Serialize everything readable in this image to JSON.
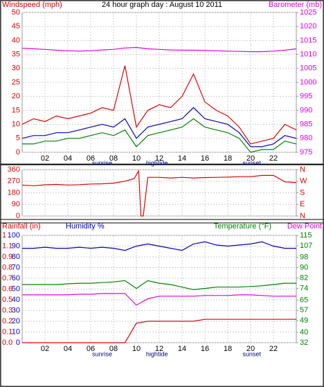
{
  "chart_data": [
    {
      "type": "line",
      "title": "24 hour graph day : August 10 2011",
      "ylabel": "Windspeed (mph)",
      "y2label": "Barometer (mb)",
      "x": [
        0,
        1,
        2,
        3,
        4,
        5,
        6,
        7,
        8,
        9,
        10,
        11,
        12,
        13,
        14,
        15,
        16,
        17,
        18,
        19,
        20,
        21,
        22,
        23,
        24
      ],
      "xlim": [
        0,
        24
      ],
      "xticks": [
        {
          "value": 2,
          "label": "02"
        },
        {
          "value": 4,
          "label": "04"
        },
        {
          "value": 6,
          "label": "06"
        },
        {
          "value": 8,
          "label": "08"
        },
        10,
        12,
        14,
        16,
        18,
        20,
        22
      ],
      "events": [
        {
          "label": "sunrise",
          "x": 7
        },
        {
          "label": "hightide",
          "x": 11.8
        },
        {
          "label": "sunset",
          "x": 20.1
        }
      ],
      "ylim": [
        0,
        50
      ],
      "yticks": [
        0,
        5,
        10,
        15,
        20,
        25,
        30,
        35,
        40,
        45,
        50
      ],
      "y2lim": [
        975,
        1025
      ],
      "y2ticks": [
        975,
        980,
        985,
        990,
        995,
        1000,
        1005,
        1010,
        1015,
        1020,
        1025
      ],
      "grid": true,
      "series": [
        {
          "color": "#e00000",
          "values": [
            10,
            12,
            11,
            13,
            12,
            13,
            14,
            16,
            15,
            31,
            9,
            15,
            17,
            16,
            20,
            28,
            18,
            15,
            13,
            9,
            3,
            4,
            5,
            10,
            8
          ]
        },
        {
          "color": "#0000c0",
          "values": [
            5,
            6,
            6,
            7,
            7,
            8,
            9,
            10,
            9,
            12,
            5,
            9,
            10,
            11,
            12,
            16,
            12,
            11,
            10,
            7,
            2,
            2,
            3,
            6,
            5
          ]
        },
        {
          "color": "#008000",
          "values": [
            3,
            3,
            4,
            4,
            5,
            5,
            6,
            7,
            6,
            8,
            2,
            6,
            7,
            8,
            9,
            12,
            9,
            8,
            7,
            5,
            0,
            1,
            1,
            4,
            3
          ]
        },
        {
          "color": "#e000e0",
          "axis": "y2",
          "values": [
            1012.2,
            1012,
            1011.8,
            1011.5,
            1011.3,
            1011.2,
            1011.3,
            1011.6,
            1011.8,
            1012.3,
            1012.5,
            1012,
            1011.8,
            1011.6,
            1011.5,
            1011.5,
            1011.4,
            1011.3,
            1011.2,
            1011.1,
            1011,
            1011,
            1011.2,
            1011.5,
            1012
          ]
        }
      ]
    },
    {
      "type": "line",
      "x": [
        0,
        1,
        2,
        3,
        4,
        5,
        6,
        7,
        8,
        9,
        9.8,
        10.2,
        10.4,
        10.6,
        11,
        12,
        13,
        14,
        15,
        16,
        17,
        18,
        19,
        20,
        21,
        22,
        23,
        24
      ],
      "xlim": [
        0,
        24
      ],
      "xticks": [
        {
          "value": 2,
          "label": "02"
        },
        {
          "value": 4,
          "label": "04"
        },
        {
          "value": 6,
          "label": "06"
        },
        {
          "value": 8,
          "label": "08"
        },
        10,
        12,
        14,
        16,
        18,
        20,
        22
      ],
      "ylim": [
        0,
        360
      ],
      "yticks": [
        0,
        90,
        180,
        270,
        360
      ],
      "y2lim": [
        0,
        360
      ],
      "y2ticks": [
        {
          "value": 0,
          "label": "N"
        },
        {
          "value": 90,
          "label": "E"
        },
        {
          "value": 180,
          "label": "S"
        },
        {
          "value": 270,
          "label": "W"
        },
        {
          "value": 360,
          "label": "N"
        }
      ],
      "grid": true,
      "series": [
        {
          "color": "#e00000",
          "values": [
            240,
            235,
            242,
            245,
            240,
            243,
            248,
            250,
            255,
            270,
            290,
            350,
            0,
            0,
            300,
            300,
            295,
            300,
            295,
            298,
            300,
            302,
            305,
            305,
            315,
            315,
            265,
            260
          ]
        }
      ]
    },
    {
      "type": "line",
      "x": [
        0,
        1,
        2,
        3,
        4,
        5,
        6,
        7,
        8,
        9,
        10,
        11,
        12,
        13,
        14,
        15,
        16,
        17,
        18,
        19,
        20,
        21,
        22,
        23,
        24
      ],
      "xlim": [
        0,
        24
      ],
      "xticks": [
        {
          "value": 2,
          "label": "02"
        },
        {
          "value": 4,
          "label": "04"
        },
        {
          "value": 6,
          "label": "06"
        },
        {
          "value": 8,
          "label": "08"
        },
        10,
        12,
        14,
        16,
        18,
        20,
        22
      ],
      "events": [
        {
          "label": "sunrise",
          "x": 7
        },
        {
          "label": "hightide",
          "x": 11.8
        },
        {
          "label": "sunset",
          "x": 20.1
        }
      ],
      "ylim": [
        0,
        100
      ],
      "yticks": [
        0,
        10,
        20,
        30,
        40,
        50,
        60,
        70,
        80,
        90,
        100
      ],
      "y2lim": [
        32,
        115
      ],
      "y2ticks": [
        32,
        40,
        49,
        57,
        65,
        74,
        82,
        90,
        98,
        107,
        115
      ],
      "y3lim": [
        0,
        1.1
      ],
      "y3ticks": [
        {
          "value": 0,
          "label": "0.0"
        },
        0.1,
        0.2,
        0.3,
        0.5,
        0.6,
        0.7,
        0.8,
        0.9,
        1.1,
        1
      ],
      "grid": true,
      "series": [
        {
          "name": "Rainfall (in)",
          "color": "#e00000",
          "axis": "y3",
          "values": [
            0,
            0,
            0,
            0,
            0,
            0,
            0,
            0,
            0,
            0,
            0.2,
            0.22,
            0.22,
            0.22,
            0.22,
            0.22,
            0.24,
            0.24,
            0.24,
            0.24,
            0.24,
            0.24,
            0.24,
            0.24,
            0.24
          ]
        },
        {
          "name": "Humidity %",
          "color": "#0000c0",
          "values": [
            88,
            88,
            89,
            88,
            88,
            89,
            88,
            89,
            88,
            86,
            90,
            92,
            90,
            88,
            86,
            92,
            94,
            91,
            90,
            91,
            92,
            94,
            90,
            88,
            88
          ]
        },
        {
          "name": "Temperature (°F)",
          "color": "#008000",
          "axis": "y2",
          "values": [
            77,
            77,
            77,
            77,
            77.5,
            78,
            78,
            78.5,
            79,
            80,
            74,
            80,
            78,
            77,
            75,
            73,
            74,
            75,
            75,
            75,
            75.5,
            76,
            77,
            78,
            78
          ]
        },
        {
          "name": "Dew Point",
          "color": "#e000e0",
          "axis": "y2",
          "values": [
            69,
            69,
            69,
            69,
            69,
            69.5,
            69.5,
            70,
            70,
            70,
            61,
            66,
            68,
            68,
            68,
            68,
            68.5,
            68.5,
            68.5,
            69,
            69,
            68.5,
            68,
            68,
            68
          ]
        }
      ]
    }
  ]
}
